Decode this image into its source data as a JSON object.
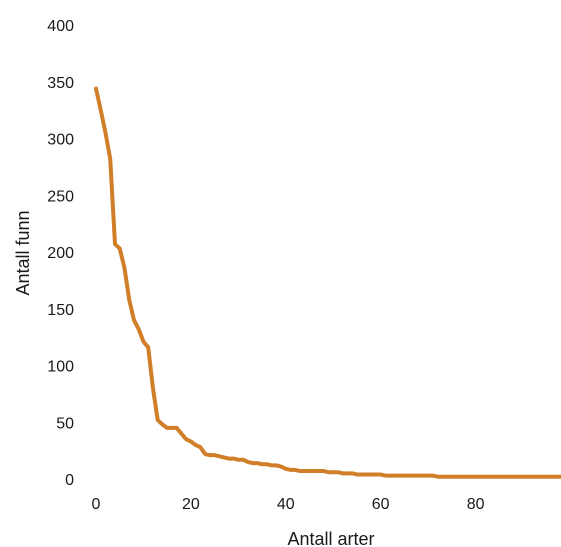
{
  "chart_data": {
    "type": "line",
    "title": "",
    "xlabel": "Antall arter",
    "ylabel": "Antall funn",
    "xlim": [
      0,
      98
    ],
    "ylim": [
      0,
      400
    ],
    "x_ticks": [
      0,
      20,
      40,
      60,
      80
    ],
    "y_ticks": [
      0,
      50,
      100,
      150,
      200,
      250,
      300,
      350,
      400
    ],
    "grid": false,
    "legend": "none",
    "colors": {
      "line": "#d07e27",
      "text": "#1a1a1a"
    },
    "series": [
      {
        "x": [
          0,
          1,
          2,
          3,
          4,
          5,
          6,
          7,
          8,
          9,
          10,
          11,
          12,
          13,
          14,
          15,
          16,
          17,
          18,
          19,
          20,
          21,
          22,
          23,
          24,
          25,
          26,
          27,
          28,
          29,
          30,
          31,
          32,
          33,
          34,
          35,
          36,
          37,
          38,
          39,
          40,
          41,
          42,
          43,
          44,
          45,
          46,
          47,
          48,
          49,
          50,
          51,
          52,
          53,
          54,
          55,
          56,
          57,
          58,
          59,
          60,
          61,
          62,
          63,
          64,
          65,
          66,
          67,
          68,
          69,
          70,
          71,
          72,
          73,
          74,
          75,
          76,
          77,
          78,
          79,
          80,
          81,
          82,
          83,
          84,
          85,
          86,
          87,
          88,
          89,
          90,
          91,
          92,
          93,
          94,
          95,
          96,
          97,
          98
        ],
        "values": [
          344,
          325,
          305,
          282,
          207,
          203,
          186,
          158,
          140,
          132,
          121,
          116,
          80,
          52,
          48,
          45,
          45,
          45,
          40,
          35,
          33,
          30,
          28,
          22,
          21,
          21,
          20,
          19,
          18,
          18,
          17,
          17,
          15,
          14,
          14,
          13,
          13,
          12,
          12,
          11,
          9,
          8,
          8,
          7,
          7,
          7,
          7,
          7,
          7,
          6,
          6,
          6,
          5,
          5,
          5,
          4,
          4,
          4,
          4,
          4,
          4,
          3,
          3,
          3,
          3,
          3,
          3,
          3,
          3,
          3,
          3,
          3,
          2,
          2,
          2,
          2,
          2,
          2,
          2,
          2,
          2,
          2,
          2,
          2,
          2,
          2,
          2,
          2,
          2,
          2,
          2,
          2,
          2,
          2,
          2,
          2,
          2,
          2,
          2
        ]
      }
    ]
  }
}
